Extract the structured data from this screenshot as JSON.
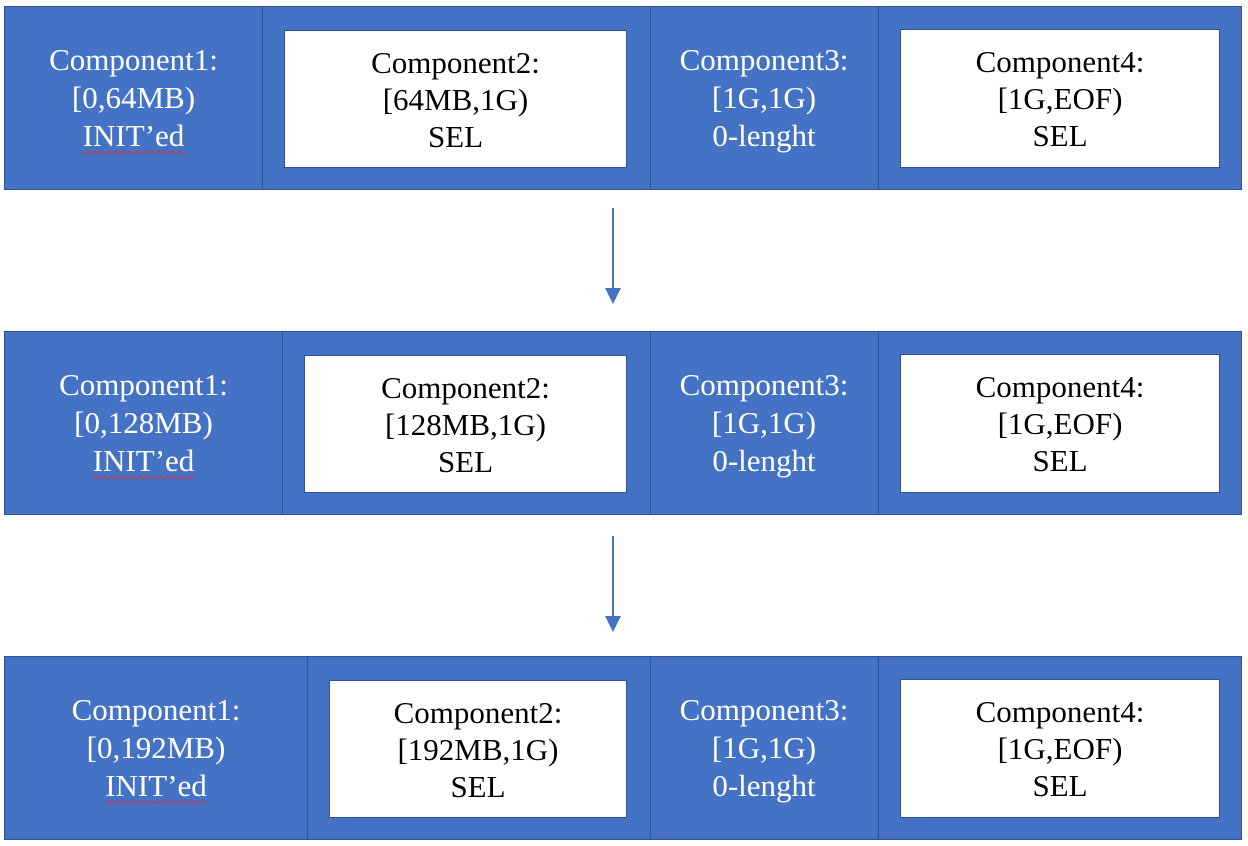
{
  "rows": [
    {
      "c1": {
        "title": "Component1:",
        "range": "[0,64MB)",
        "state": "INIT’ed"
      },
      "c2": {
        "title": "Component2:",
        "range": "[64MB,1G)",
        "state": "SEL"
      },
      "c3": {
        "title": "Component3:",
        "range": "[1G,1G)",
        "state": "0-lenght"
      },
      "c4": {
        "title": "Component4:",
        "range": "[1G,EOF)",
        "state": "SEL"
      }
    },
    {
      "c1": {
        "title": "Component1:",
        "range": "[0,128MB)",
        "state": "INIT’ed"
      },
      "c2": {
        "title": "Component2:",
        "range": "[128MB,1G)",
        "state": "SEL"
      },
      "c3": {
        "title": "Component3:",
        "range": "[1G,1G)",
        "state": "0-lenght"
      },
      "c4": {
        "title": "Component4:",
        "range": "[1G,EOF)",
        "state": "SEL"
      }
    },
    {
      "c1": {
        "title": "Component1:",
        "range": "[0,192MB)",
        "state": "INIT’ed"
      },
      "c2": {
        "title": "Component2:",
        "range": "[192MB,1G)",
        "state": "SEL"
      },
      "c3": {
        "title": "Component3:",
        "range": "[1G,1G)",
        "state": "0-lenght"
      },
      "c4": {
        "title": "Component4:",
        "range": "[1G,EOF)",
        "state": "SEL"
      }
    }
  ],
  "colors": {
    "row_fill": "#4472c4",
    "box_fill": "#ffffff",
    "arrow": "#4472c4",
    "spellcheck": "#e03030"
  }
}
